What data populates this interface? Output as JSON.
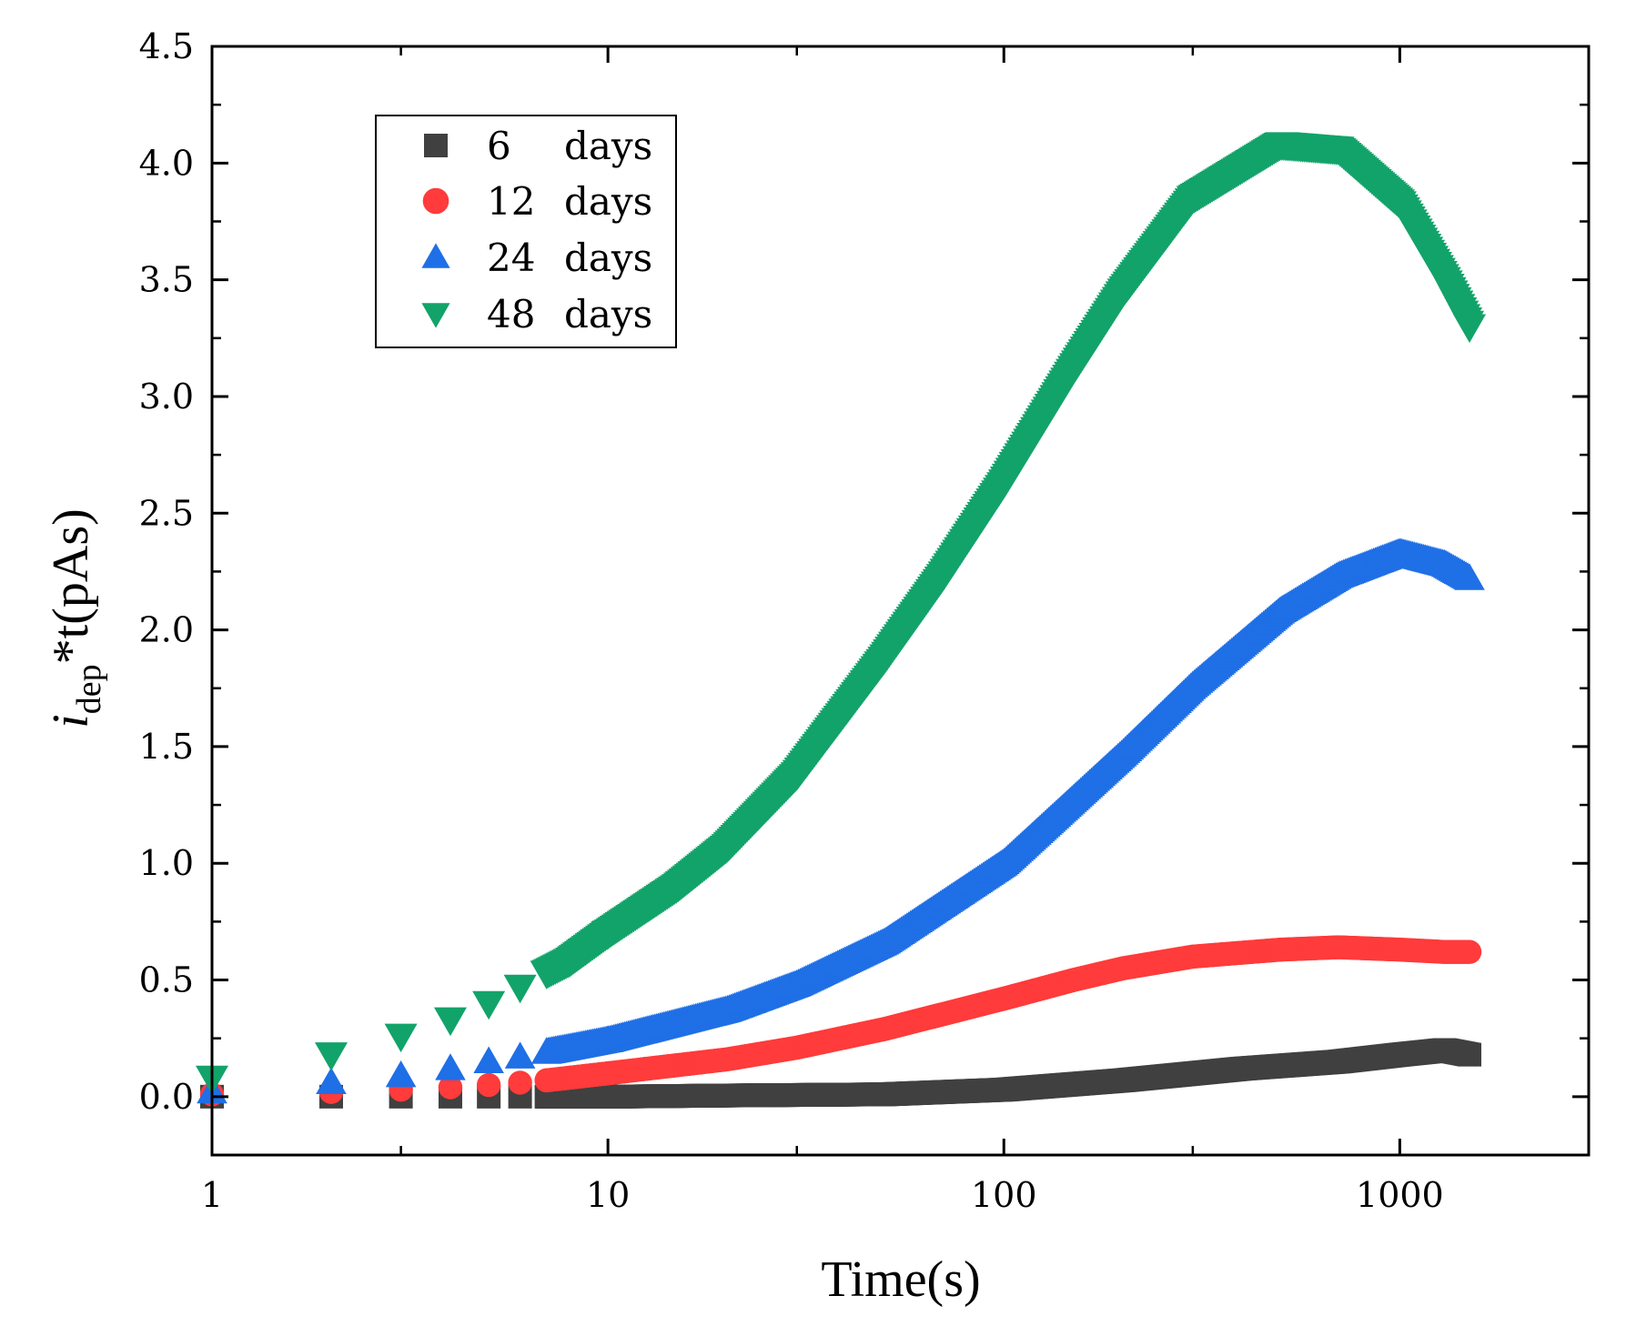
{
  "chart_data": {
    "type": "scatter",
    "title": "",
    "xlabel": "Time(s)",
    "ylabel_main": "i",
    "ylabel_sub": "dep",
    "ylabel_rest": "*t(pAs)",
    "xscale": "log",
    "xlim": [
      1,
      3000
    ],
    "ylim": [
      -0.25,
      4.5
    ],
    "grid": false,
    "legend_position": "top-left",
    "x_ticks": [
      1,
      10,
      100,
      1000
    ],
    "x_tick_labels": [
      "1",
      "10",
      "100",
      "1000"
    ],
    "y_ticks": [
      0.0,
      0.5,
      1.0,
      1.5,
      2.0,
      2.5,
      3.0,
      3.5,
      4.0,
      4.5
    ],
    "y_tick_labels": [
      "0.0",
      "0.5",
      "1.0",
      "1.5",
      "2.0",
      "2.5",
      "3.0",
      "3.5",
      "4.0",
      "4.5"
    ],
    "series": [
      {
        "name": "6",
        "label_num": "6",
        "label_unit": "days",
        "marker": "square",
        "color": "#404040",
        "x": [
          1,
          2,
          3,
          4,
          5,
          6,
          7,
          10,
          20,
          50,
          100,
          200,
          400,
          700,
          1000,
          1300,
          1500
        ],
        "y": [
          0.0,
          0.0,
          0.0,
          0.0,
          0.0,
          0.0,
          0.0,
          0.0,
          0.005,
          0.01,
          0.03,
          0.07,
          0.12,
          0.15,
          0.18,
          0.2,
          0.18
        ]
      },
      {
        "name": "12",
        "label_num": "12",
        "label_unit": "days",
        "marker": "circle",
        "color": "#ff3b3b",
        "x": [
          1,
          2,
          3,
          4,
          5,
          6,
          7,
          10,
          20,
          30,
          50,
          100,
          150,
          200,
          300,
          500,
          700,
          1000,
          1300,
          1500
        ],
        "y": [
          0.01,
          0.02,
          0.03,
          0.04,
          0.05,
          0.06,
          0.07,
          0.1,
          0.16,
          0.21,
          0.29,
          0.42,
          0.5,
          0.55,
          0.6,
          0.63,
          0.64,
          0.63,
          0.62,
          0.62
        ]
      },
      {
        "name": "24",
        "label_num": "24",
        "label_unit": "days",
        "marker": "triangle-up",
        "color": "#1f6fe6",
        "x": [
          1,
          2,
          3,
          4,
          5,
          6,
          7,
          10,
          20,
          30,
          50,
          100,
          200,
          300,
          500,
          700,
          1000,
          1300,
          1500
        ],
        "y": [
          0.02,
          0.06,
          0.09,
          0.12,
          0.15,
          0.17,
          0.19,
          0.24,
          0.37,
          0.48,
          0.66,
          1.0,
          1.47,
          1.76,
          2.08,
          2.23,
          2.33,
          2.28,
          2.22
        ]
      },
      {
        "name": "48",
        "label_num": "48",
        "label_unit": "days",
        "marker": "triangle-down",
        "color": "#12a36a",
        "x": [
          1,
          2,
          3,
          4,
          5,
          6,
          7,
          8,
          10,
          15,
          20,
          30,
          50,
          70,
          100,
          150,
          200,
          300,
          500,
          700,
          1000,
          1300,
          1500
        ],
        "y": [
          0.08,
          0.18,
          0.26,
          0.33,
          0.4,
          0.47,
          0.53,
          0.58,
          0.7,
          0.9,
          1.07,
          1.38,
          1.88,
          2.23,
          2.63,
          3.12,
          3.45,
          3.85,
          4.08,
          4.06,
          3.83,
          3.5,
          3.3
        ]
      }
    ]
  }
}
